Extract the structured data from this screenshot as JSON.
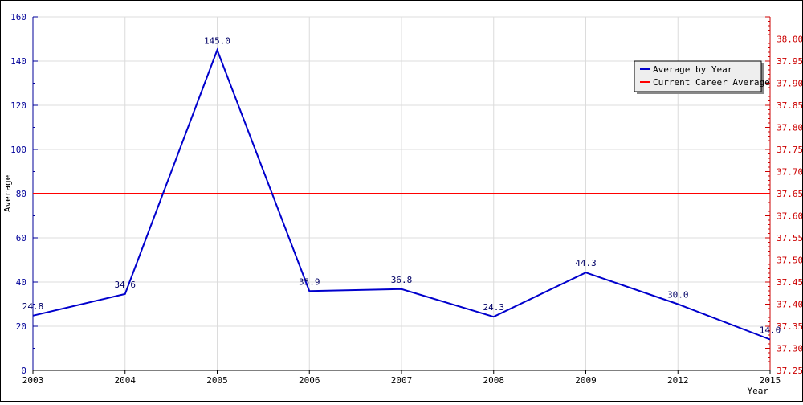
{
  "colors": {
    "series": "#0000cc",
    "career": "#ff0000",
    "left_axis": "#000099",
    "right_axis": "#cc0000",
    "grid": "#dcdcdc",
    "legend_bg": "#eeeeee"
  },
  "chart_data": {
    "type": "line",
    "xlabel": "Year",
    "ylabel": "Average",
    "categories": [
      "2003",
      "2004",
      "2005",
      "2006",
      "2007",
      "2008",
      "2009",
      "2012",
      "2015"
    ],
    "series": [
      {
        "name": "Average by Year",
        "values": [
          24.8,
          34.6,
          145.0,
          35.9,
          36.8,
          24.3,
          44.3,
          30.0,
          14.0
        ],
        "labels": [
          "24.8",
          "34.6",
          "145.0",
          "35.9",
          "36.8",
          "24.3",
          "44.3",
          "30.0",
          "14.0"
        ],
        "axis": "left"
      },
      {
        "name": "Current Career Average",
        "value": 37.65,
        "axis": "right"
      }
    ],
    "ylim_left": [
      0,
      160
    ],
    "yticks_left": [
      "0",
      "20",
      "40",
      "60",
      "80",
      "100",
      "120",
      "140",
      "160"
    ],
    "ylim_right": [
      37.25,
      38.05
    ],
    "yticks_right": [
      "37.25",
      "37.30",
      "37.35",
      "37.40",
      "37.45",
      "37.50",
      "37.55",
      "37.60",
      "37.65",
      "37.70",
      "37.75",
      "37.80",
      "37.85",
      "37.90",
      "37.95",
      "38.00"
    ],
    "grid": true,
    "legend_position": "top-right"
  }
}
